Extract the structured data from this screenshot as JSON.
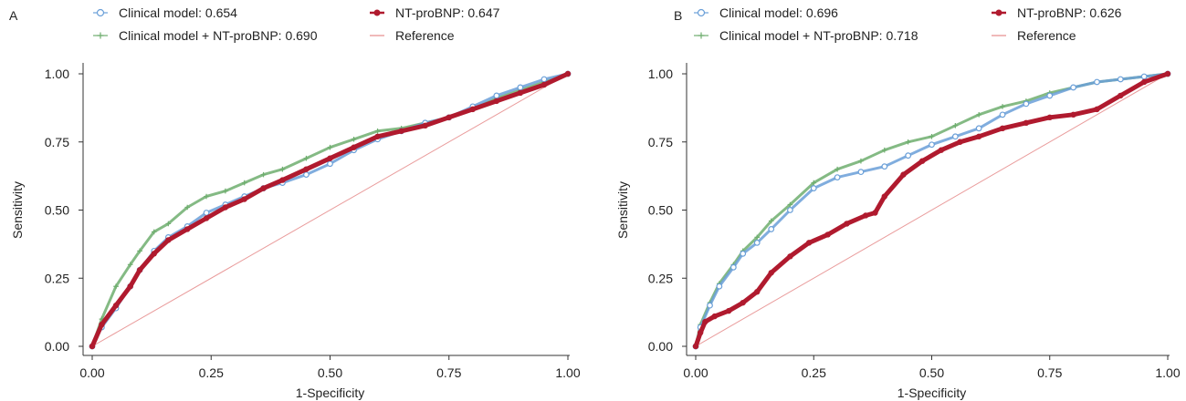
{
  "chart_data": [
    {
      "panel_label": "A",
      "type": "line",
      "xlabel": "1-Specificity",
      "ylabel": "Sensitivity",
      "xlim": [
        0,
        1
      ],
      "ylim": [
        0,
        1
      ],
      "xticks": [
        "0.00",
        "0.25",
        "0.50",
        "0.75",
        "1.00"
      ],
      "yticks": [
        "0.00",
        "0.25",
        "0.50",
        "0.75",
        "1.00"
      ],
      "grid": false,
      "legend_position": "top",
      "legend": [
        {
          "label": "Clinical model: 0.654",
          "marker": "circle",
          "color": "#6a9fd8"
        },
        {
          "label": "NT-proBNP: 0.647",
          "marker": "filled-circle",
          "color": "#b01a2e"
        },
        {
          "label": "Clinical model + NT-proBNP: 0.690",
          "marker": "plus",
          "color": "#6fae6f"
        },
        {
          "label": "Reference",
          "marker": "line",
          "color": "#e58a8a"
        }
      ],
      "series": [
        {
          "name": "Clinical model + NT-proBNP",
          "color": "#6fae6f",
          "x": [
            0,
            0.02,
            0.05,
            0.08,
            0.1,
            0.13,
            0.16,
            0.2,
            0.24,
            0.28,
            0.32,
            0.36,
            0.4,
            0.45,
            0.5,
            0.55,
            0.6,
            0.65,
            0.7,
            0.75,
            0.8,
            0.85,
            0.9,
            0.95,
            1.0
          ],
          "y": [
            0,
            0.1,
            0.22,
            0.3,
            0.35,
            0.42,
            0.45,
            0.51,
            0.55,
            0.57,
            0.6,
            0.63,
            0.65,
            0.69,
            0.73,
            0.76,
            0.79,
            0.8,
            0.82,
            0.84,
            0.87,
            0.91,
            0.94,
            0.97,
            1.0
          ]
        },
        {
          "name": "Clinical model",
          "color": "#6a9fd8",
          "x": [
            0,
            0.02,
            0.05,
            0.08,
            0.1,
            0.13,
            0.16,
            0.2,
            0.24,
            0.28,
            0.32,
            0.36,
            0.4,
            0.45,
            0.5,
            0.55,
            0.6,
            0.65,
            0.7,
            0.75,
            0.8,
            0.85,
            0.9,
            0.95,
            1.0
          ],
          "y": [
            0,
            0.07,
            0.14,
            0.22,
            0.28,
            0.35,
            0.4,
            0.44,
            0.49,
            0.52,
            0.55,
            0.58,
            0.6,
            0.63,
            0.67,
            0.72,
            0.76,
            0.79,
            0.82,
            0.84,
            0.88,
            0.92,
            0.95,
            0.98,
            1.0
          ]
        },
        {
          "name": "NT-proBNP",
          "color": "#b01a2e",
          "x": [
            0,
            0.02,
            0.05,
            0.08,
            0.1,
            0.13,
            0.16,
            0.2,
            0.24,
            0.28,
            0.32,
            0.36,
            0.4,
            0.45,
            0.5,
            0.55,
            0.6,
            0.65,
            0.7,
            0.75,
            0.8,
            0.85,
            0.9,
            0.95,
            1.0
          ],
          "y": [
            0,
            0.08,
            0.15,
            0.22,
            0.28,
            0.34,
            0.39,
            0.43,
            0.47,
            0.51,
            0.54,
            0.58,
            0.61,
            0.65,
            0.69,
            0.73,
            0.77,
            0.79,
            0.81,
            0.84,
            0.87,
            0.9,
            0.93,
            0.96,
            1.0
          ]
        },
        {
          "name": "Reference",
          "color": "#e58a8a",
          "x": [
            0,
            1
          ],
          "y": [
            0,
            1
          ]
        }
      ]
    },
    {
      "panel_label": "B",
      "type": "line",
      "xlabel": "1-Specificity",
      "ylabel": "Sensitivity",
      "xlim": [
        0,
        1
      ],
      "ylim": [
        0,
        1
      ],
      "xticks": [
        "0.00",
        "0.25",
        "0.50",
        "0.75",
        "1.00"
      ],
      "yticks": [
        "0.00",
        "0.25",
        "0.50",
        "0.75",
        "1.00"
      ],
      "grid": false,
      "legend_position": "top",
      "legend": [
        {
          "label": "Clinical model: 0.696",
          "marker": "circle",
          "color": "#6a9fd8"
        },
        {
          "label": "NT-proBNP: 0.626",
          "marker": "filled-circle",
          "color": "#b01a2e"
        },
        {
          "label": "Clinical model + NT-proBNP: 0.718",
          "marker": "plus",
          "color": "#6fae6f"
        },
        {
          "label": "Reference",
          "marker": "line",
          "color": "#e58a8a"
        }
      ],
      "series": [
        {
          "name": "Clinical model + NT-proBNP",
          "color": "#6fae6f",
          "x": [
            0,
            0.01,
            0.03,
            0.05,
            0.08,
            0.1,
            0.13,
            0.16,
            0.2,
            0.25,
            0.3,
            0.35,
            0.4,
            0.45,
            0.5,
            0.55,
            0.6,
            0.65,
            0.7,
            0.75,
            0.8,
            0.85,
            0.9,
            0.95,
            1.0
          ],
          "y": [
            0,
            0.08,
            0.16,
            0.23,
            0.3,
            0.35,
            0.4,
            0.46,
            0.52,
            0.6,
            0.65,
            0.68,
            0.72,
            0.75,
            0.77,
            0.81,
            0.85,
            0.88,
            0.9,
            0.93,
            0.95,
            0.97,
            0.98,
            0.99,
            1.0
          ]
        },
        {
          "name": "Clinical model",
          "color": "#6a9fd8",
          "x": [
            0,
            0.01,
            0.03,
            0.05,
            0.08,
            0.1,
            0.13,
            0.16,
            0.2,
            0.25,
            0.3,
            0.35,
            0.4,
            0.45,
            0.5,
            0.55,
            0.6,
            0.65,
            0.7,
            0.75,
            0.8,
            0.85,
            0.9,
            0.95,
            1.0
          ],
          "y": [
            0,
            0.07,
            0.15,
            0.22,
            0.29,
            0.34,
            0.38,
            0.43,
            0.5,
            0.58,
            0.62,
            0.64,
            0.66,
            0.7,
            0.74,
            0.77,
            0.8,
            0.85,
            0.89,
            0.92,
            0.95,
            0.97,
            0.98,
            0.99,
            1.0
          ]
        },
        {
          "name": "NT-proBNP",
          "color": "#b01a2e",
          "x": [
            0,
            0.01,
            0.02,
            0.04,
            0.07,
            0.1,
            0.13,
            0.16,
            0.2,
            0.24,
            0.28,
            0.32,
            0.36,
            0.38,
            0.4,
            0.44,
            0.48,
            0.52,
            0.56,
            0.6,
            0.65,
            0.7,
            0.75,
            0.8,
            0.85,
            0.9,
            0.95,
            1.0
          ],
          "y": [
            0,
            0.05,
            0.09,
            0.11,
            0.13,
            0.16,
            0.2,
            0.27,
            0.33,
            0.38,
            0.41,
            0.45,
            0.48,
            0.49,
            0.55,
            0.63,
            0.68,
            0.72,
            0.75,
            0.77,
            0.8,
            0.82,
            0.84,
            0.85,
            0.87,
            0.92,
            0.97,
            1.0
          ]
        },
        {
          "name": "Reference",
          "color": "#e58a8a",
          "x": [
            0,
            1
          ],
          "y": [
            0,
            1
          ]
        }
      ]
    }
  ]
}
